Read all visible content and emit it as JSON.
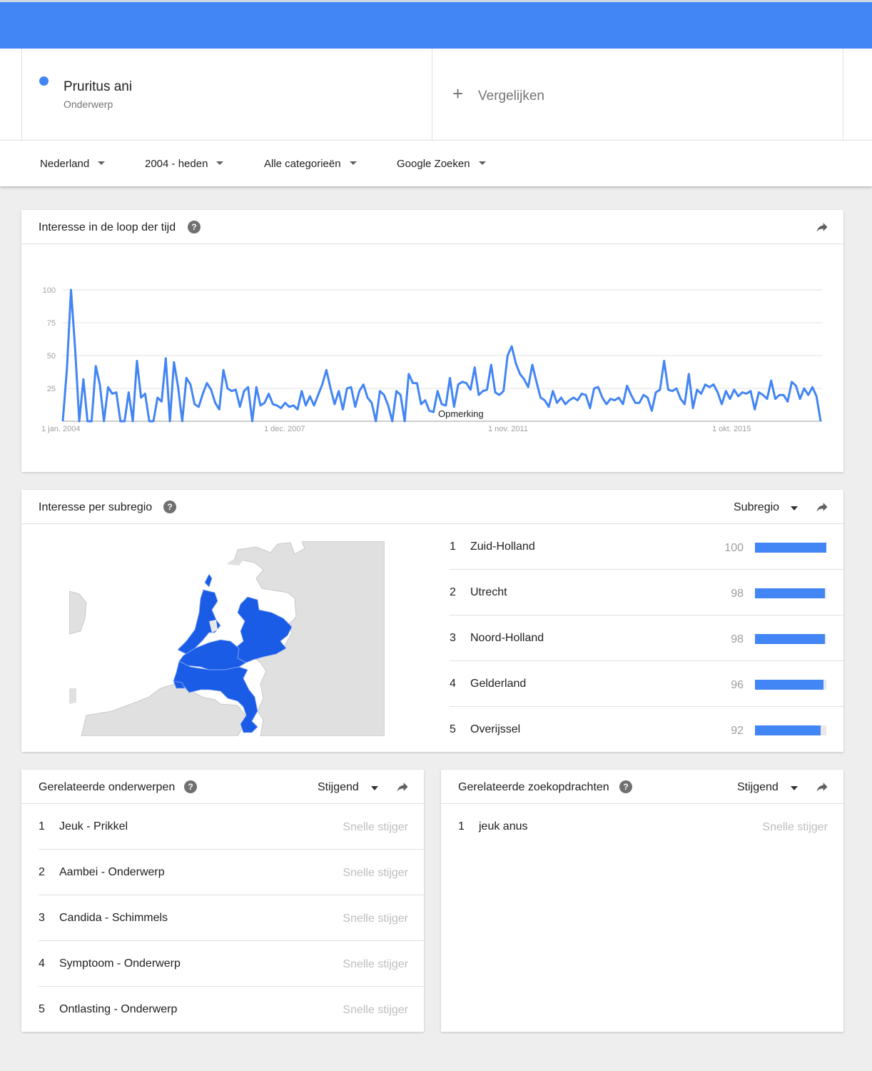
{
  "term": {
    "name": "Pruritus ani",
    "type": "Onderwerp",
    "color": "#4285f4"
  },
  "compare": {
    "label": "Vergelijken"
  },
  "filters": [
    {
      "label": "Nederland"
    },
    {
      "label": "2004 - heden"
    },
    {
      "label": "Alle categorieën"
    },
    {
      "label": "Google Zoeken"
    }
  ],
  "time_card": {
    "title": "Interesse in de loop der tijd"
  },
  "chart_data": {
    "type": "line",
    "x_tick_labels": [
      "1 jan. 2004",
      "1 dec. 2007",
      "1 nov. 2011",
      "1 okt. 2015"
    ],
    "y_ticks": [
      25,
      50,
      75,
      100
    ],
    "ylim": [
      0,
      100
    ],
    "annotation": "Opmerking",
    "grid": true,
    "series": [
      {
        "color": "#4285f4",
        "values": [
          0,
          40,
          100,
          55,
          0,
          32,
          0,
          0,
          42,
          28,
          0,
          26,
          21,
          22,
          0,
          0,
          22,
          0,
          46,
          18,
          21,
          0,
          0,
          18,
          15,
          48,
          0,
          45,
          26,
          0,
          33,
          28,
          13,
          11,
          21,
          29,
          24,
          14,
          9,
          39,
          25,
          23,
          24,
          11,
          23,
          26,
          0,
          26,
          12,
          14,
          21,
          13,
          12,
          10,
          14,
          11,
          12,
          9,
          23,
          12,
          19,
          12,
          20,
          28,
          39,
          25,
          13,
          23,
          9,
          25,
          26,
          11,
          23,
          28,
          18,
          14,
          0,
          23,
          20,
          12,
          0,
          23,
          20,
          0,
          36,
          29,
          29,
          13,
          16,
          8,
          7,
          23,
          13,
          12,
          33,
          11,
          28,
          30,
          29,
          24,
          41,
          20,
          23,
          24,
          43,
          22,
          20,
          23,
          50,
          57,
          44,
          36,
          32,
          26,
          43,
          30,
          18,
          16,
          11,
          23,
          14,
          18,
          13,
          16,
          18,
          16,
          21,
          20,
          10,
          25,
          26,
          18,
          13,
          17,
          16,
          18,
          13,
          27,
          20,
          14,
          14,
          20,
          18,
          8,
          22,
          24,
          46,
          24,
          23,
          25,
          17,
          13,
          36,
          10,
          24,
          21,
          28,
          26,
          28,
          22,
          13,
          23,
          17,
          24,
          19,
          22,
          21,
          23,
          9,
          22,
          20,
          17,
          31,
          17,
          20,
          20,
          15,
          30,
          27,
          17,
          25,
          20,
          26,
          19,
          0
        ]
      }
    ]
  },
  "region_card": {
    "title": "Interesse per subregio",
    "dropdown": "Subregio",
    "regions": [
      {
        "rank": "1",
        "name": "Zuid-Holland",
        "value": "100",
        "score": 100
      },
      {
        "rank": "2",
        "name": "Utrecht",
        "value": "98",
        "score": 98
      },
      {
        "rank": "3",
        "name": "Noord-Holland",
        "value": "98",
        "score": 98
      },
      {
        "rank": "4",
        "name": "Gelderland",
        "value": "96",
        "score": 96
      },
      {
        "rank": "5",
        "name": "Overijssel",
        "value": "92",
        "score": 92
      }
    ],
    "map_colors": {
      "highlight": "#1a5ce6",
      "land": "#e0e0e0",
      "water": "#ffffff"
    }
  },
  "topics_card": {
    "title": "Gerelateerde onderwerpen",
    "sort": "Stijgend",
    "items": [
      {
        "rank": "1",
        "name": "Jeuk - Prikkel",
        "badge": "Snelle stijger"
      },
      {
        "rank": "2",
        "name": "Aambei - Onderwerp",
        "badge": "Snelle stijger"
      },
      {
        "rank": "3",
        "name": "Candida - Schimmels",
        "badge": "Snelle stijger"
      },
      {
        "rank": "4",
        "name": "Symptoom - Onderwerp",
        "badge": "Snelle stijger"
      },
      {
        "rank": "5",
        "name": "Ontlasting - Onderwerp",
        "badge": "Snelle stijger"
      }
    ]
  },
  "queries_card": {
    "title": "Gerelateerde zoekopdrachten",
    "sort": "Stijgend",
    "items": [
      {
        "rank": "1",
        "name": "jeuk anus",
        "badge": "Snelle stijger"
      }
    ]
  }
}
